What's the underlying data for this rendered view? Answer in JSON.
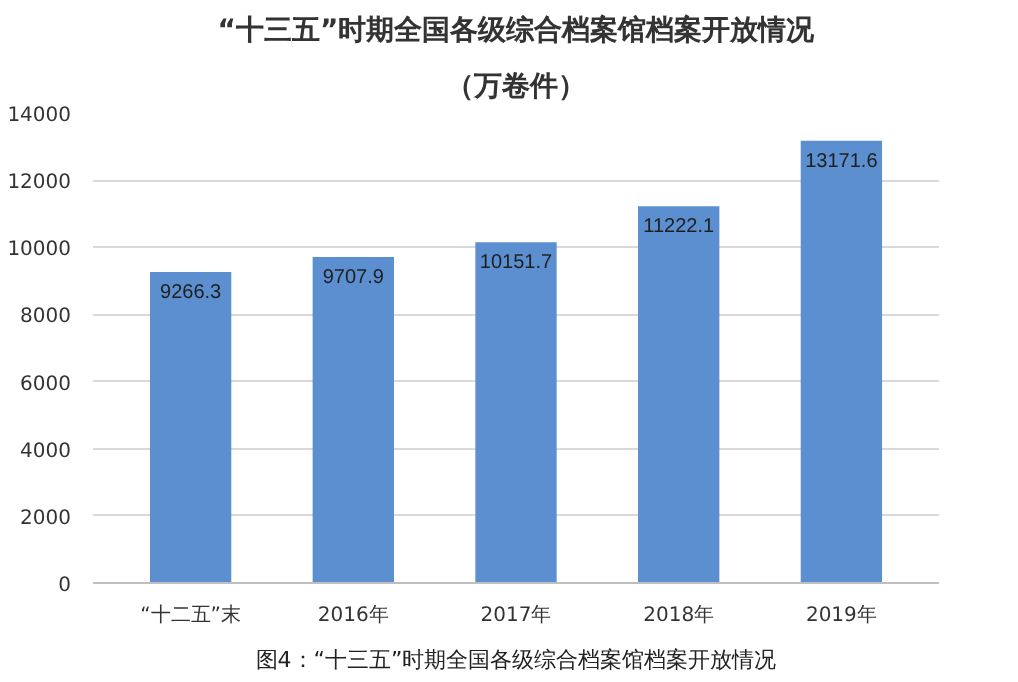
{
  "chart_data": {
    "type": "bar",
    "title": "“十三五”时期全国各级综合档案馆档案开放情况",
    "subtitle": "（万卷件）",
    "categories": [
      "“十二五”末",
      "2016年",
      "2017年",
      "2018年",
      "2019年"
    ],
    "values": [
      9266.3,
      9707.9,
      10151.7,
      11222.1,
      13171.6
    ],
    "color": "#5b8fd0",
    "ylim": [
      0,
      14000
    ],
    "yticks": [
      0,
      2000,
      4000,
      6000,
      8000,
      10000,
      12000,
      14000
    ],
    "grid": "y",
    "data_labels": true,
    "annotations": [
      "图4：“十三五”时期全国各级综合档案馆档案开放情况"
    ]
  }
}
